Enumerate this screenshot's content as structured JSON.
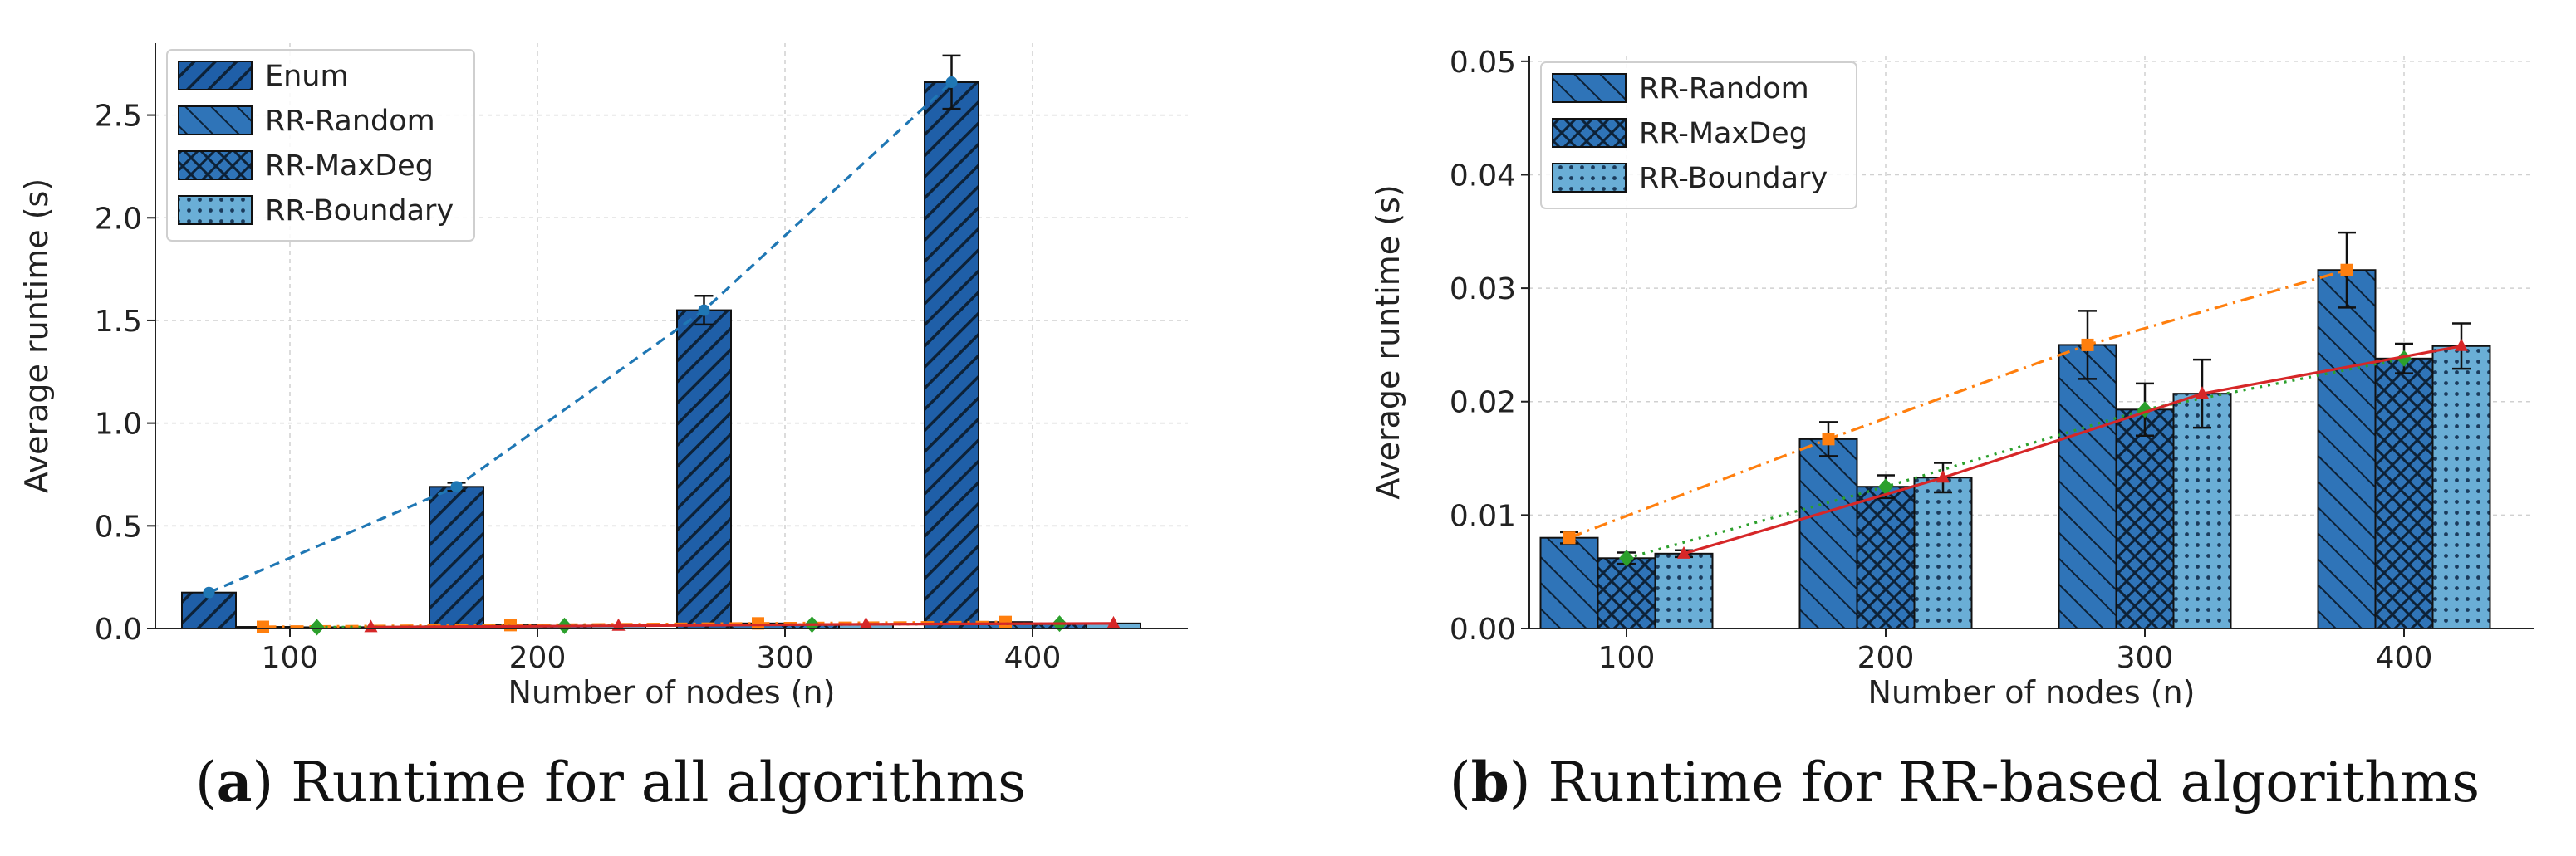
{
  "chart_data": [
    {
      "type": "bar",
      "panel": "a",
      "title": "",
      "categories": [
        "100",
        "200",
        "300",
        "400"
      ],
      "xlabel": "Number of nodes (n)",
      "ylabel": "Average runtime (s)",
      "ylim": [
        0,
        2.85
      ],
      "yticks": [
        0.0,
        0.5,
        1.0,
        1.5,
        2.0,
        2.5
      ],
      "ytick_labels": [
        "0.0",
        "0.5",
        "1.0",
        "1.5",
        "2.0",
        "2.5"
      ],
      "grid": true,
      "legend_position": "top-left",
      "series": [
        {
          "name": "Enum",
          "values": [
            0.175,
            0.69,
            1.55,
            2.66
          ],
          "errors": [
            0.01,
            0.02,
            0.07,
            0.13
          ],
          "color": "#1f5fa8",
          "hatch": "dense-diagonal"
        },
        {
          "name": "RR-Random",
          "values": [
            0.008,
            0.0167,
            0.025,
            0.0316
          ],
          "errors": [
            0.0005,
            0.0015,
            0.003,
            0.0033
          ],
          "color": "#2f74b8",
          "hatch": "backslash"
        },
        {
          "name": "RR-MaxDeg",
          "values": [
            0.0062,
            0.0125,
            0.0193,
            0.0238
          ],
          "errors": [
            0.0005,
            0.001,
            0.0023,
            0.0013
          ],
          "color": "#2f74b8",
          "hatch": "cross"
        },
        {
          "name": "RR-Boundary",
          "values": [
            0.0066,
            0.0133,
            0.0207,
            0.0249
          ],
          "errors": [
            0.0003,
            0.0013,
            0.003,
            0.002
          ],
          "color": "#6aaed6",
          "hatch": "dots"
        }
      ],
      "trend_lines": [
        {
          "series": "Enum",
          "values": [
            0.175,
            0.69,
            1.55,
            2.66
          ],
          "color": "#1f77b4",
          "style": "dashed",
          "marker": "circle"
        },
        {
          "series": "RR-Random",
          "values": [
            0.008,
            0.0167,
            0.025,
            0.0316
          ],
          "color": "#ff7f0e",
          "style": "dashdot",
          "marker": "square"
        },
        {
          "series": "RR-MaxDeg",
          "values": [
            0.0062,
            0.0125,
            0.0193,
            0.0238
          ],
          "color": "#2ca02c",
          "style": "dotted",
          "marker": "diamond"
        },
        {
          "series": "RR-Boundary",
          "values": [
            0.0066,
            0.0133,
            0.0207,
            0.0249
          ],
          "color": "#d62728",
          "style": "solid",
          "marker": "triangle"
        }
      ]
    },
    {
      "type": "bar",
      "panel": "b",
      "title": "",
      "categories": [
        "100",
        "200",
        "300",
        "400"
      ],
      "xlabel": "Number of nodes (n)",
      "ylabel": "Average runtime (s)",
      "ylim": [
        0,
        0.0505
      ],
      "yticks": [
        0.0,
        0.01,
        0.02,
        0.03,
        0.04,
        0.05
      ],
      "ytick_labels": [
        "0.00",
        "0.01",
        "0.02",
        "0.03",
        "0.04",
        "0.05"
      ],
      "grid": true,
      "legend_position": "top-left",
      "series": [
        {
          "name": "RR-Random",
          "values": [
            0.008,
            0.0167,
            0.025,
            0.0316
          ],
          "errors": [
            0.0005,
            0.0015,
            0.003,
            0.0033
          ],
          "color": "#2f74b8",
          "hatch": "backslash"
        },
        {
          "name": "RR-MaxDeg",
          "values": [
            0.0062,
            0.0125,
            0.0193,
            0.0238
          ],
          "errors": [
            0.0005,
            0.001,
            0.0023,
            0.0013
          ],
          "color": "#2f74b8",
          "hatch": "cross"
        },
        {
          "name": "RR-Boundary",
          "values": [
            0.0066,
            0.0133,
            0.0207,
            0.0249
          ],
          "errors": [
            0.0003,
            0.0013,
            0.003,
            0.002
          ],
          "color": "#6aaed6",
          "hatch": "dots"
        }
      ],
      "trend_lines": [
        {
          "series": "RR-Random",
          "values": [
            0.008,
            0.0167,
            0.025,
            0.0316
          ],
          "color": "#ff7f0e",
          "style": "dashdot",
          "marker": "square"
        },
        {
          "series": "RR-MaxDeg",
          "values": [
            0.0062,
            0.0125,
            0.0193,
            0.0238
          ],
          "color": "#2ca02c",
          "style": "dotted",
          "marker": "diamond"
        },
        {
          "series": "RR-Boundary",
          "values": [
            0.0066,
            0.0133,
            0.0207,
            0.0249
          ],
          "color": "#d62728",
          "style": "solid",
          "marker": "triangle"
        }
      ]
    }
  ],
  "captions": [
    {
      "letter": "a",
      "text": ") Runtime for all algorithms"
    },
    {
      "letter": "b",
      "text": ") Runtime for RR-based algorithms"
    }
  ]
}
